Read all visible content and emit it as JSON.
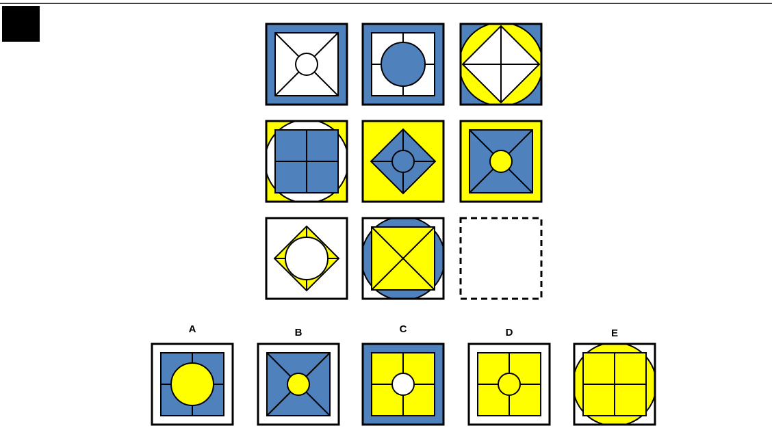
{
  "colors": {
    "blue": "#4F81BD",
    "yellow": "#FFFF00",
    "white": "#FFFFFF",
    "stroke": "#000000"
  },
  "puzzle": {
    "grid": [
      {
        "bg": "blue",
        "circle": "none",
        "square": "white",
        "square_shape": "square",
        "lines": "x",
        "inner": "white"
      },
      {
        "bg": "blue",
        "circle": "none",
        "square": "white",
        "square_shape": "square",
        "lines": "plus",
        "inner": "blue"
      },
      {
        "bg": "blue",
        "circle": "yellow",
        "square": "white",
        "square_shape": "diamond",
        "lines": "plus",
        "inner": "none"
      },
      {
        "bg": "yellow",
        "circle": "white",
        "square": "blue",
        "square_shape": "square",
        "lines": "plus",
        "inner": "none"
      },
      {
        "bg": "yellow",
        "circle": "none",
        "square": "blue",
        "square_shape": "diamond",
        "lines": "plus",
        "inner": "blue"
      },
      {
        "bg": "yellow",
        "circle": "none",
        "square": "blue",
        "square_shape": "square",
        "lines": "x",
        "inner": "yellow"
      },
      {
        "bg": "white",
        "circle": "none",
        "square": "yellow",
        "square_shape": "diamond",
        "lines": "plus",
        "inner": "white"
      },
      {
        "bg": "white",
        "circle": "blue",
        "square": "yellow",
        "square_shape": "square",
        "lines": "x",
        "inner": "none"
      },
      {
        "missing": true
      }
    ],
    "options": [
      {
        "label": "A",
        "bg": "white",
        "circle": "none",
        "square": "blue",
        "square_shape": "square",
        "lines": "plus",
        "inner": "yellow"
      },
      {
        "label": "B",
        "bg": "white",
        "circle": "none",
        "square": "blue",
        "square_shape": "square",
        "lines": "x",
        "inner": "yellow"
      },
      {
        "label": "C",
        "bg": "blue",
        "circle": "none",
        "square": "yellow",
        "square_shape": "square",
        "lines": "plus",
        "inner": "white"
      },
      {
        "label": "D",
        "bg": "white",
        "circle": "none",
        "square": "yellow",
        "square_shape": "square",
        "lines": "plus",
        "inner": "yellow"
      },
      {
        "label": "E",
        "bg": "white",
        "circle": "yellow",
        "square": "yellow",
        "square_shape": "square",
        "lines": "plus",
        "inner": "none"
      }
    ]
  }
}
